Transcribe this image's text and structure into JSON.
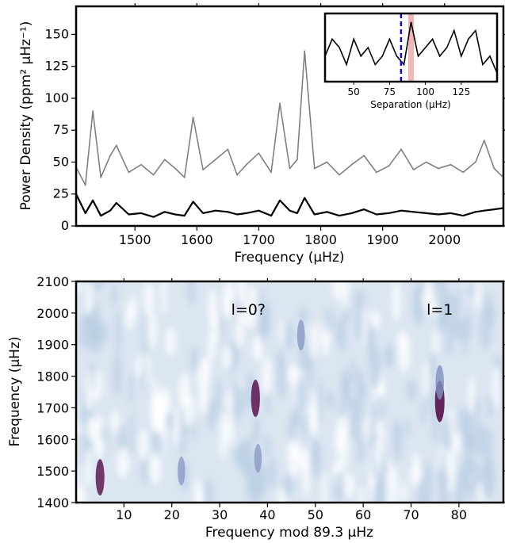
{
  "chart_data": [
    {
      "type": "line",
      "xlabel": "Frequency (μHz)",
      "ylabel": "Power Density (ppm² μHz⁻¹)",
      "xlim": [
        1405,
        2095
      ],
      "ylim": [
        0,
        172
      ],
      "x_ticks": [
        1500,
        1600,
        1700,
        1800,
        1900,
        2000
      ],
      "y_ticks": [
        0,
        25,
        50,
        75,
        100,
        125,
        150
      ],
      "series": [
        {
          "color": "#808080",
          "x": [
            1405,
            1420,
            1432,
            1445,
            1460,
            1470,
            1490,
            1510,
            1530,
            1548,
            1565,
            1580,
            1594,
            1610,
            1630,
            1650,
            1665,
            1680,
            1700,
            1720,
            1734,
            1750,
            1762,
            1774,
            1790,
            1810,
            1830,
            1850,
            1870,
            1890,
            1910,
            1930,
            1950,
            1970,
            1990,
            2010,
            2030,
            2050,
            2064,
            2080,
            2095
          ],
          "y": [
            46,
            32,
            90,
            38,
            55,
            63,
            42,
            48,
            40,
            52,
            45,
            38,
            85,
            44,
            52,
            60,
            40,
            48,
            57,
            42,
            96,
            45,
            52,
            137,
            45,
            50,
            40,
            48,
            55,
            42,
            47,
            60,
            44,
            50,
            45,
            48,
            42,
            50,
            67,
            45,
            38
          ]
        },
        {
          "color": "#000000",
          "x": [
            1405,
            1420,
            1432,
            1445,
            1460,
            1470,
            1490,
            1510,
            1530,
            1548,
            1565,
            1580,
            1594,
            1610,
            1630,
            1650,
            1665,
            1680,
            1700,
            1720,
            1734,
            1750,
            1762,
            1774,
            1790,
            1810,
            1830,
            1850,
            1870,
            1890,
            1910,
            1930,
            1950,
            1970,
            1990,
            2010,
            2030,
            2050,
            2064,
            2080,
            2095
          ],
          "y": [
            25,
            10,
            20,
            8,
            12,
            18,
            9,
            10,
            7,
            11,
            9,
            8,
            19,
            10,
            12,
            11,
            9,
            10,
            12,
            8,
            20,
            12,
            10,
            22,
            9,
            11,
            8,
            10,
            13,
            9,
            10,
            12,
            11,
            10,
            9,
            10,
            8,
            11,
            12,
            13,
            14
          ]
        }
      ]
    },
    {
      "type": "line",
      "xlabel": "Separation (μHz)",
      "xlim": [
        30,
        150
      ],
      "x_ticks": [
        50,
        75,
        100,
        125
      ],
      "vline": {
        "x": 83,
        "color": "#0000ff"
      },
      "highlight": {
        "x0": 88,
        "x1": 92,
        "color": "#f4a8a8"
      },
      "series": [
        {
          "color": "#000000",
          "x": [
            30,
            35,
            40,
            45,
            50,
            55,
            60,
            65,
            70,
            75,
            80,
            85,
            90,
            95,
            100,
            105,
            110,
            115,
            120,
            125,
            130,
            135,
            140,
            145,
            150
          ],
          "y": [
            0.3,
            0.5,
            0.4,
            0.2,
            0.5,
            0.3,
            0.4,
            0.2,
            0.3,
            0.5,
            0.3,
            0.2,
            0.7,
            0.3,
            0.4,
            0.5,
            0.3,
            0.4,
            0.6,
            0.3,
            0.5,
            0.6,
            0.2,
            0.3,
            0.1
          ]
        }
      ]
    },
    {
      "type": "heatmap",
      "xlabel": "Frequency mod 89.3 μHz",
      "ylabel": "Frequency (μHz)",
      "xlim": [
        0,
        89.3
      ],
      "ylim": [
        1400,
        2100
      ],
      "x_ticks": [
        10,
        20,
        30,
        40,
        50,
        60,
        70,
        80
      ],
      "y_ticks": [
        1400,
        1500,
        1600,
        1700,
        1800,
        1900,
        2000,
        2100
      ],
      "colormap": [
        "#ffffff",
        "#b7cde2",
        "#7f91c0",
        "#5c1752"
      ],
      "annotations": [
        {
          "text": "l=0?",
          "x": 36,
          "y": 2010,
          "color": "#ff0000"
        },
        {
          "text": "l=1",
          "x": 76,
          "y": 2010,
          "color": "#ff0000"
        }
      ],
      "hotspots": [
        {
          "x": 5,
          "y": 1480,
          "v": 0.75
        },
        {
          "x": 37.5,
          "y": 1730,
          "v": 0.8
        },
        {
          "x": 76,
          "y": 1720,
          "v": 1.0
        },
        {
          "x": 76,
          "y": 1780,
          "v": 0.65
        },
        {
          "x": 47,
          "y": 1930,
          "v": 0.45
        },
        {
          "x": 38,
          "y": 1540,
          "v": 0.35
        },
        {
          "x": 22,
          "y": 1500,
          "v": 0.35
        }
      ]
    }
  ]
}
